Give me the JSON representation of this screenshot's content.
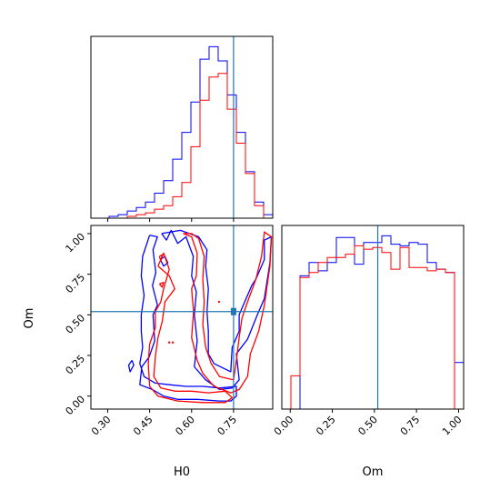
{
  "colors": {
    "series_a": "#0000ff",
    "series_b": "#ff0000",
    "truth": "#1f77b4"
  },
  "chart_data": [
    {
      "type": "histogram",
      "panel": "H0-marginal",
      "xlim": [
        0.24,
        0.89
      ],
      "yticks_visible": false,
      "truth": 0.75,
      "bin_edges": [
        0.24,
        0.2725,
        0.305,
        0.3375,
        0.37,
        0.4025,
        0.435,
        0.4675,
        0.5,
        0.5325,
        0.565,
        0.5975,
        0.63,
        0.6625,
        0.695,
        0.7275,
        0.76,
        0.7925,
        0.825,
        0.8575,
        0.89
      ],
      "series": [
        {
          "color": "series_a",
          "values": [
            0,
            0,
            1,
            2,
            4,
            6,
            9,
            14,
            21,
            33,
            48,
            65,
            89,
            96,
            88,
            69,
            48,
            26,
            9,
            2
          ]
        },
        {
          "color": "series_b",
          "values": [
            0,
            0,
            0,
            0,
            1,
            2,
            3,
            5,
            7,
            12,
            20,
            40,
            66,
            79,
            81,
            61,
            42,
            25,
            7,
            0
          ]
        }
      ]
    },
    {
      "type": "histogram",
      "panel": "Om-marginal",
      "xlim": [
        -0.05,
        1.03
      ],
      "xticks": [
        0.0,
        0.25,
        0.5,
        0.75,
        1.0
      ],
      "xtick_labels": [
        "0.00",
        "0.25",
        "0.50",
        "0.75",
        "1.00"
      ],
      "xlabel": "Om",
      "truth": 0.52,
      "bin_edges": [
        -0.05,
        0.004,
        0.058,
        0.112,
        0.166,
        0.22,
        0.274,
        0.328,
        0.382,
        0.436,
        0.49,
        0.544,
        0.598,
        0.652,
        0.706,
        0.76,
        0.814,
        0.868,
        0.922,
        0.976,
        1.03
      ],
      "series": [
        {
          "color": "series_a",
          "values": [
            0,
            0,
            80,
            88,
            83,
            88,
            103,
            103,
            87,
            100,
            100,
            104,
            99,
            98,
            100,
            99,
            88,
            84,
            82,
            28
          ]
        },
        {
          "color": "series_b",
          "values": [
            0,
            20,
            79,
            82,
            88,
            91,
            91,
            93,
            98,
            96,
            97,
            94,
            84,
            97,
            85,
            85,
            83,
            84,
            82,
            0
          ]
        }
      ]
    },
    {
      "type": "contour",
      "panel": "H0-Om-joint",
      "xlim": [
        0.24,
        0.89
      ],
      "ylim": [
        -0.08,
        1.05
      ],
      "xticks": [
        0.3,
        0.45,
        0.6,
        0.75
      ],
      "xtick_labels": [
        "0.30",
        "0.45",
        "0.60",
        "0.75"
      ],
      "yticks": [
        0.0,
        0.25,
        0.5,
        0.75,
        1.0
      ],
      "ytick_labels": [
        "0.00",
        "0.25",
        "0.50",
        "0.75",
        "1.00"
      ],
      "xlabel": "H0",
      "ylabel": "Om",
      "truth": [
        0.75,
        0.52
      ],
      "series": [
        {
          "color": "series_a",
          "contours": [
            [
              [
                0.493,
                1.0
              ],
              [
                0.51,
                0.96
              ],
              [
                0.527,
                1.02
              ],
              [
                0.55,
                0.94
              ],
              [
                0.58,
                0.98
              ],
              [
                0.606,
                0.86
              ],
              [
                0.6,
                0.74
              ],
              [
                0.617,
                0.64
              ],
              [
                0.61,
                0.5
              ],
              [
                0.62,
                0.34
              ],
              [
                0.61,
                0.18
              ],
              [
                0.65,
                0.1
              ],
              [
                0.7,
                0.04
              ],
              [
                0.745,
                0.05
              ],
              [
                0.77,
                0.1
              ],
              [
                0.76,
                0.26
              ],
              [
                0.8,
                0.35
              ],
              [
                0.835,
                0.5
              ],
              [
                0.86,
                0.6
              ],
              [
                0.88,
                0.82
              ],
              [
                0.885,
                0.98
              ],
              [
                0.86,
                0.96
              ],
              [
                0.86,
                0.84
              ],
              [
                0.83,
                0.72
              ],
              [
                0.815,
                0.68
              ],
              [
                0.79,
                0.58
              ],
              [
                0.77,
                0.5
              ],
              [
                0.77,
                0.4
              ],
              [
                0.745,
                0.3
              ],
              [
                0.74,
                0.15
              ],
              [
                0.68,
                0.2
              ],
              [
                0.66,
                0.26
              ],
              [
                0.66,
                0.4
              ],
              [
                0.655,
                0.52
              ],
              [
                0.66,
                0.66
              ],
              [
                0.65,
                0.8
              ],
              [
                0.655,
                0.9
              ],
              [
                0.625,
                0.98
              ],
              [
                0.56,
                1.02
              ],
              [
                0.493,
                1.0
              ]
            ],
            [
              [
                0.45,
                0.99
              ],
              [
                0.478,
                0.98
              ],
              [
                0.462,
                0.9
              ],
              [
                0.472,
                0.76
              ],
              [
                0.46,
                0.68
              ],
              [
                0.478,
                0.56
              ],
              [
                0.462,
                0.5
              ],
              [
                0.468,
                0.34
              ],
              [
                0.448,
                0.24
              ],
              [
                0.422,
                0.18
              ],
              [
                0.415,
                0.07
              ],
              [
                0.46,
                0.04
              ],
              [
                0.5,
                0.0
              ],
              [
                0.55,
                -0.02
              ],
              [
                0.62,
                -0.02
              ],
              [
                0.7,
                -0.03
              ],
              [
                0.74,
                -0.03
              ],
              [
                0.76,
                0.0
              ],
              [
                0.76,
                0.06
              ],
              [
                0.7,
                0.05
              ],
              [
                0.64,
                0.06
              ],
              [
                0.58,
                0.06
              ],
              [
                0.52,
                0.07
              ],
              [
                0.47,
                0.08
              ],
              [
                0.43,
                0.12
              ],
              [
                0.415,
                0.2
              ],
              [
                0.425,
                0.3
              ],
              [
                0.42,
                0.4
              ],
              [
                0.42,
                0.5
              ],
              [
                0.43,
                0.62
              ],
              [
                0.42,
                0.74
              ],
              [
                0.425,
                0.86
              ],
              [
                0.45,
                0.99
              ]
            ],
            [
              [
                0.488,
                0.84
              ],
              [
                0.505,
                0.86
              ],
              [
                0.515,
                0.82
              ],
              [
                0.5,
                0.8
              ],
              [
                0.488,
                0.84
              ]
            ],
            [
              [
                0.387,
                0.22
              ],
              [
                0.393,
                0.19
              ],
              [
                0.38,
                0.15
              ],
              [
                0.375,
                0.19
              ],
              [
                0.387,
                0.22
              ]
            ]
          ]
        },
        {
          "color": "series_b",
          "contours": [
            [
              [
                0.57,
                1.0
              ],
              [
                0.6,
                0.98
              ],
              [
                0.62,
                0.88
              ],
              [
                0.617,
                0.74
              ],
              [
                0.6,
                0.66
              ],
              [
                0.607,
                0.52
              ],
              [
                0.6,
                0.36
              ],
              [
                0.62,
                0.22
              ],
              [
                0.64,
                0.14
              ],
              [
                0.68,
                0.06
              ],
              [
                0.74,
                0.02
              ],
              [
                0.77,
                0.04
              ],
              [
                0.8,
                0.12
              ],
              [
                0.81,
                0.26
              ],
              [
                0.84,
                0.4
              ],
              [
                0.86,
                0.56
              ],
              [
                0.88,
                0.8
              ],
              [
                0.885,
                0.98
              ],
              [
                0.86,
                1.01
              ],
              [
                0.85,
                0.86
              ],
              [
                0.83,
                0.72
              ],
              [
                0.8,
                0.58
              ],
              [
                0.78,
                0.48
              ],
              [
                0.77,
                0.36
              ],
              [
                0.76,
                0.22
              ],
              [
                0.75,
                0.1
              ],
              [
                0.7,
                0.12
              ],
              [
                0.67,
                0.2
              ],
              [
                0.65,
                0.3
              ],
              [
                0.64,
                0.44
              ],
              [
                0.645,
                0.58
              ],
              [
                0.64,
                0.72
              ],
              [
                0.645,
                0.86
              ],
              [
                0.625,
                0.97
              ],
              [
                0.6,
                1.0
              ],
              [
                0.57,
                1.0
              ]
            ],
            [
              [
                0.48,
                0.8
              ],
              [
                0.5,
                0.88
              ],
              [
                0.52,
                0.78
              ],
              [
                0.5,
                0.66
              ],
              [
                0.49,
                0.58
              ],
              [
                0.47,
                0.52
              ],
              [
                0.47,
                0.42
              ],
              [
                0.45,
                0.32
              ],
              [
                0.445,
                0.2
              ],
              [
                0.45,
                0.06
              ],
              [
                0.48,
                0.0
              ],
              [
                0.55,
                -0.03
              ],
              [
                0.64,
                -0.04
              ],
              [
                0.72,
                -0.04
              ],
              [
                0.745,
                -0.01
              ],
              [
                0.72,
                0.03
              ],
              [
                0.66,
                0.02
              ],
              [
                0.6,
                0.03
              ],
              [
                0.54,
                0.03
              ],
              [
                0.49,
                0.05
              ],
              [
                0.465,
                0.12
              ],
              [
                0.47,
                0.24
              ],
              [
                0.48,
                0.36
              ],
              [
                0.495,
                0.46
              ],
              [
                0.505,
                0.58
              ],
              [
                0.54,
                0.66
              ],
              [
                0.52,
                0.74
              ],
              [
                0.48,
                0.8
              ]
            ],
            [
              [
                0.485,
                0.86
              ],
              [
                0.495,
                0.87
              ],
              [
                0.49,
                0.83
              ],
              [
                0.485,
                0.86
              ]
            ],
            [
              [
                0.485,
                0.69
              ],
              [
                0.5,
                0.7
              ],
              [
                0.495,
                0.67
              ],
              [
                0.485,
                0.69
              ]
            ]
          ],
          "points": [
            [
              0.698,
              0.58
            ],
            [
              0.52,
              0.33
            ],
            [
              0.533,
              0.33
            ]
          ]
        }
      ]
    }
  ]
}
